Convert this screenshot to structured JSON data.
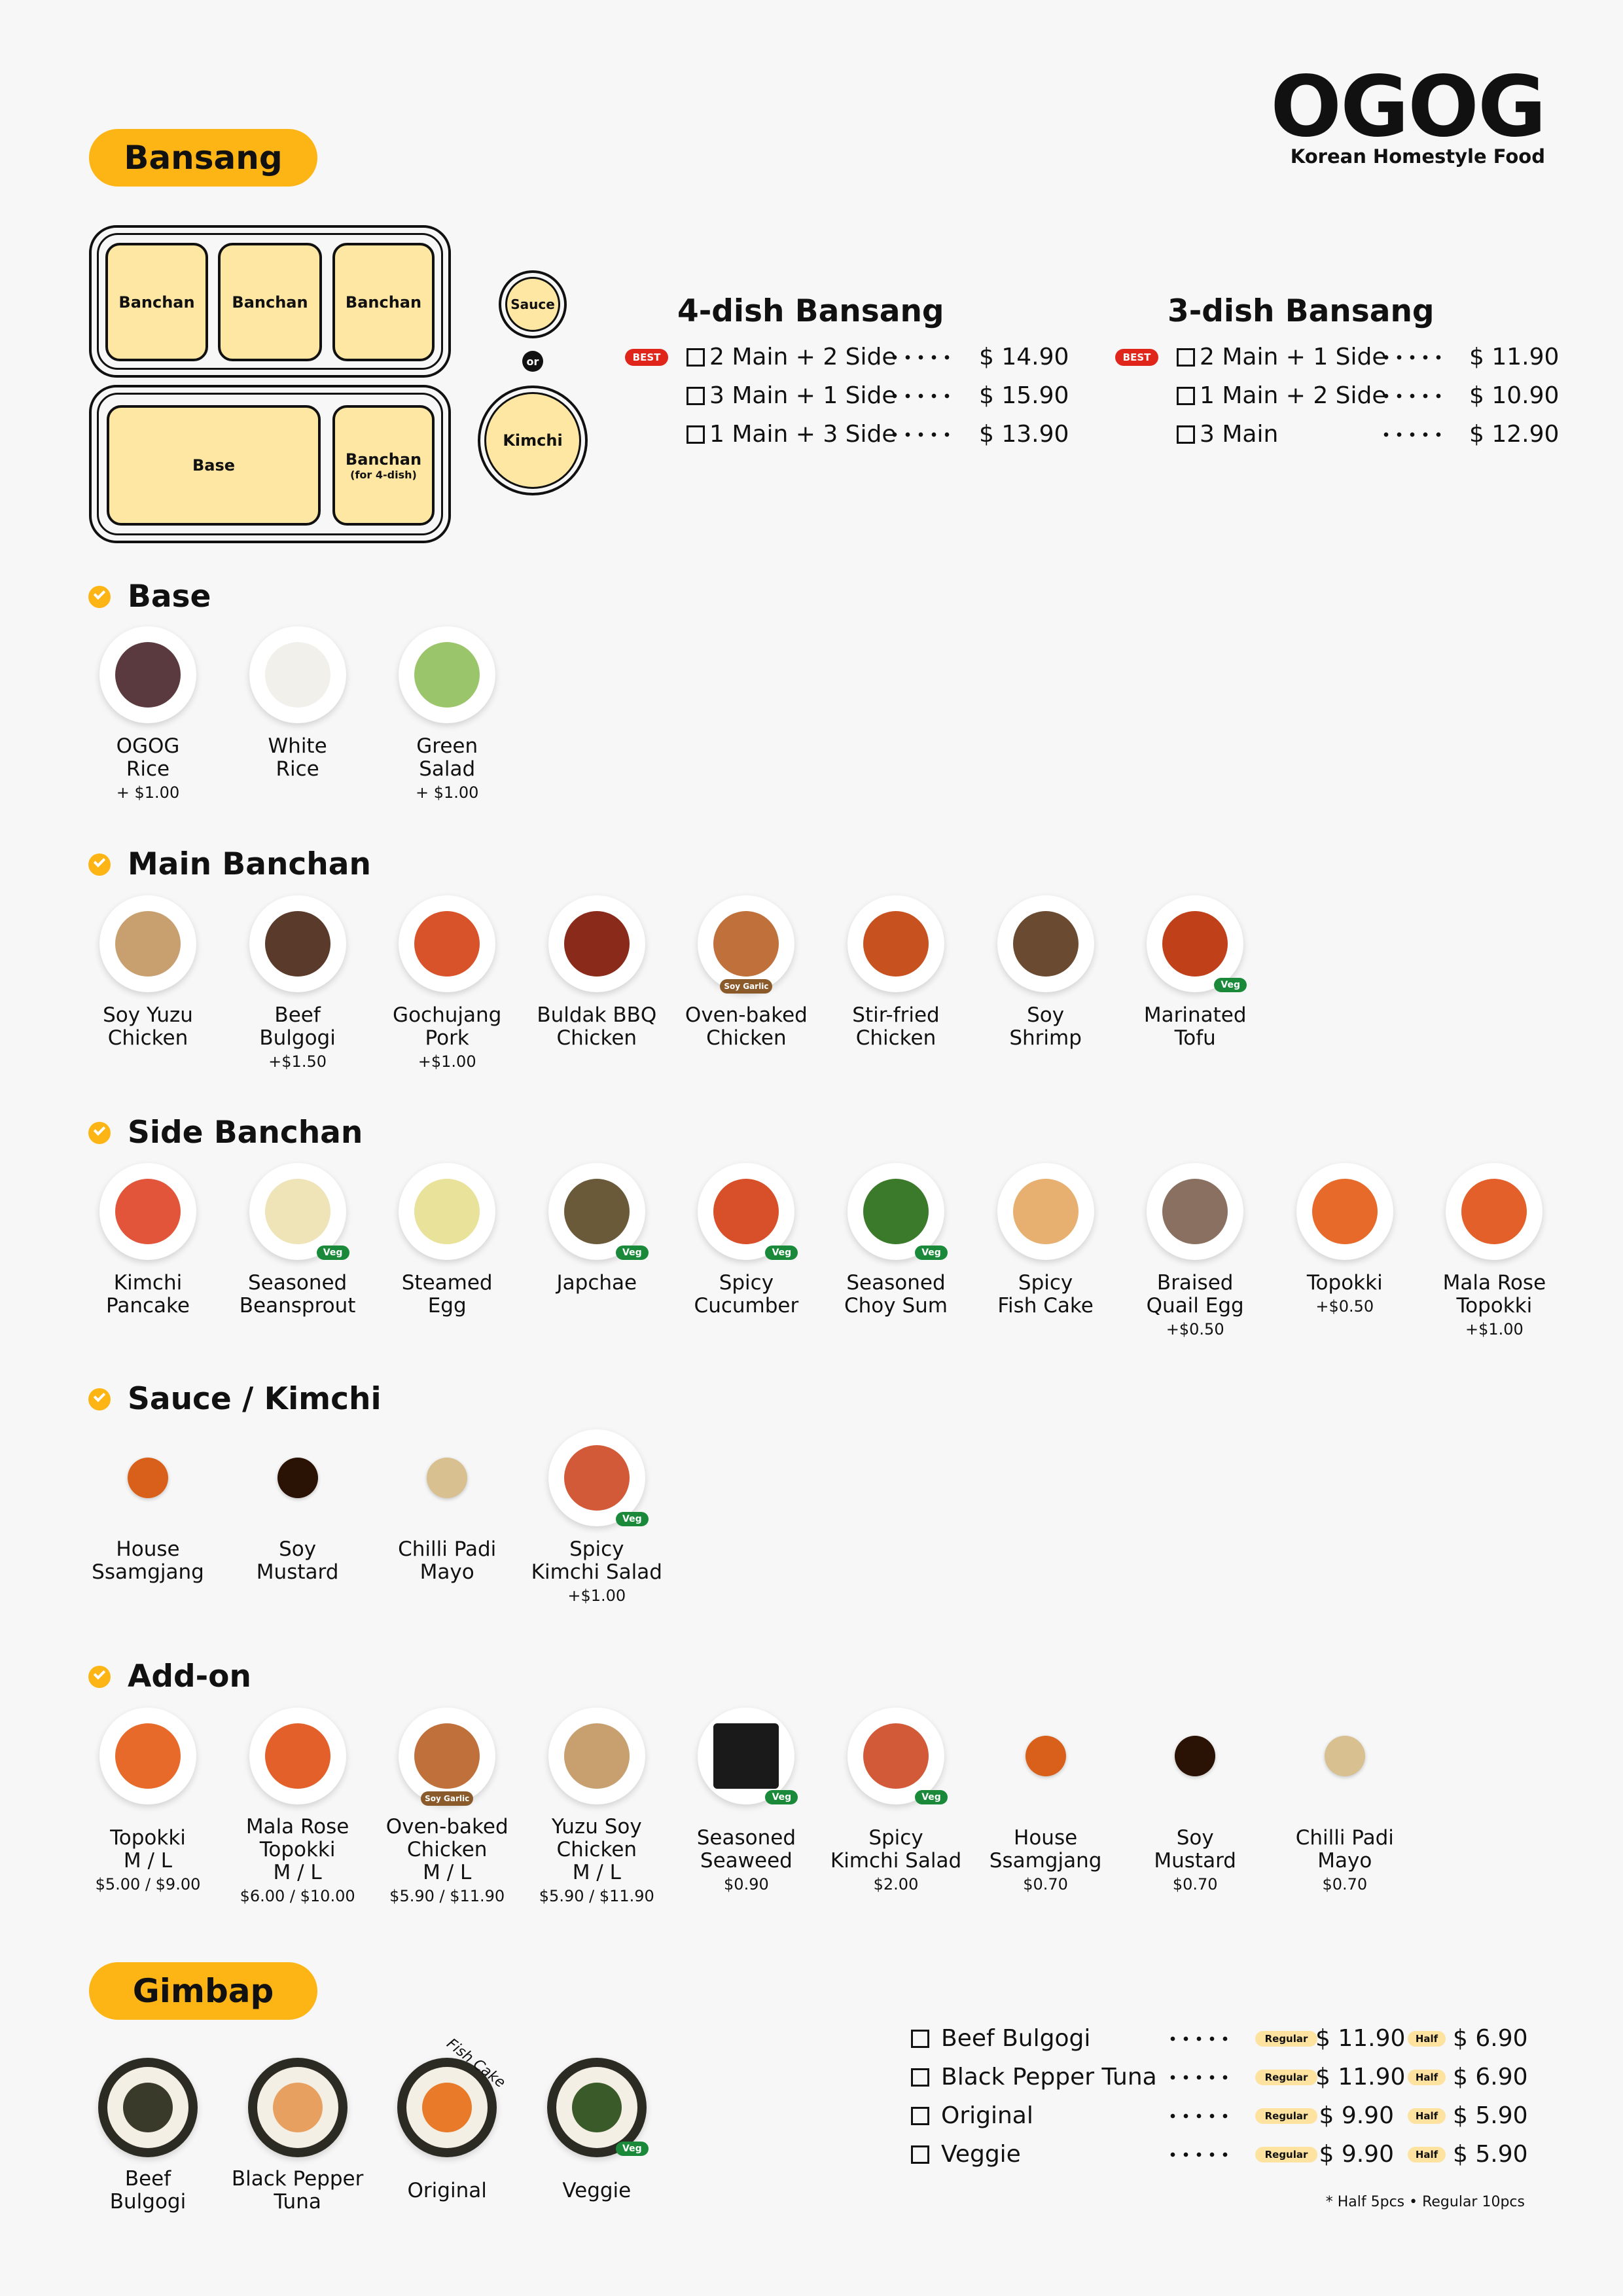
{
  "brand": {
    "name": "OGOG",
    "tagline": "Korean Homestyle Food"
  },
  "bansang": {
    "title": "Bansang",
    "diagram": {
      "slots": [
        "Banchan",
        "Banchan",
        "Banchan",
        "Base",
        "Banchan"
      ],
      "slot_note": "(for 4-dish)",
      "sauce": "Sauce",
      "or": "or",
      "kimchi": "Kimchi"
    },
    "sets": [
      {
        "title": "4-dish Bansang",
        "options": [
          {
            "badge": "BEST",
            "label": "2 Main + 2 Side",
            "price": "$ 14.90"
          },
          {
            "label": "3 Main + 1 Side",
            "price": "$ 15.90"
          },
          {
            "label": "1 Main + 3 Side",
            "price": "$ 13.90"
          }
        ]
      },
      {
        "title": "3-dish Bansang",
        "options": [
          {
            "badge": "BEST",
            "label": "2 Main + 1 Side",
            "price": "$ 11.90"
          },
          {
            "label": "1 Main + 2 Side",
            "price": "$ 10.90"
          },
          {
            "label": "3 Main",
            "price": "$ 12.90"
          }
        ]
      }
    ]
  },
  "sections": [
    {
      "title": "Base",
      "items": [
        {
          "lines": [
            "OGOG",
            "Rice"
          ],
          "note": "+ $1.00"
        },
        {
          "lines": [
            "White",
            "Rice"
          ]
        },
        {
          "lines": [
            "Green",
            "Salad"
          ],
          "note": "+ $1.00"
        }
      ]
    },
    {
      "title": "Main Banchan",
      "items": [
        {
          "lines": [
            "Soy Yuzu",
            "Chicken"
          ]
        },
        {
          "lines": [
            "Beef",
            "Bulgogi"
          ],
          "note": "+$1.50"
        },
        {
          "lines": [
            "Gochujang",
            "Pork"
          ],
          "note": "+$1.00"
        },
        {
          "lines": [
            "Buldak BBQ",
            "Chicken"
          ]
        },
        {
          "lines": [
            "Oven-baked",
            "Chicken"
          ],
          "tag": "Soy Garlic"
        },
        {
          "lines": [
            "Stir-fried",
            "Chicken"
          ]
        },
        {
          "lines": [
            "Soy",
            "Shrimp"
          ]
        },
        {
          "lines": [
            "Marinated",
            "Tofu"
          ],
          "tag": "Veg"
        }
      ]
    },
    {
      "title": "Side Banchan",
      "items": [
        {
          "lines": [
            "Kimchi",
            "Pancake"
          ]
        },
        {
          "lines": [
            "Seasoned",
            "Beansprout"
          ],
          "tag": "Veg"
        },
        {
          "lines": [
            "Steamed",
            "Egg"
          ]
        },
        {
          "lines": [
            "Japchae"
          ],
          "tag": "Veg"
        },
        {
          "lines": [
            "Spicy",
            "Cucumber"
          ],
          "tag": "Veg"
        },
        {
          "lines": [
            "Seasoned",
            "Choy Sum"
          ],
          "tag": "Veg"
        },
        {
          "lines": [
            "Spicy",
            "Fish Cake"
          ]
        },
        {
          "lines": [
            "Braised",
            "Quail Egg"
          ],
          "note": "+$0.50"
        },
        {
          "lines": [
            "Topokki"
          ],
          "note": "+$0.50"
        },
        {
          "lines": [
            "Mala Rose",
            "Topokki"
          ],
          "note": "+$1.00"
        }
      ]
    },
    {
      "title": "Sauce / Kimchi",
      "items": [
        {
          "lines": [
            "House",
            "Ssamgjang"
          ]
        },
        {
          "lines": [
            "Soy",
            "Mustard"
          ]
        },
        {
          "lines": [
            "Chilli Padi",
            "Mayo"
          ]
        },
        {
          "lines": [
            "Spicy",
            "Kimchi Salad"
          ],
          "note": "+$1.00",
          "tag": "Veg"
        }
      ]
    },
    {
      "title": "Add-on",
      "items": [
        {
          "lines": [
            "Topokki",
            "M / L"
          ],
          "note": "$5.00 / $9.00"
        },
        {
          "lines": [
            "Mala Rose",
            "Topokki",
            "M / L"
          ],
          "note": "$6.00 / $10.00"
        },
        {
          "lines": [
            "Oven-baked",
            "Chicken",
            "M / L"
          ],
          "note": "$5.90 / $11.90",
          "tag": "Soy Garlic"
        },
        {
          "lines": [
            "Yuzu Soy",
            "Chicken",
            "M / L"
          ],
          "note": "$5.90 / $11.90"
        },
        {
          "lines": [
            "Seasoned",
            "Seaweed"
          ],
          "note": "$0.90",
          "tag": "Veg"
        },
        {
          "lines": [
            "Spicy",
            "Kimchi Salad"
          ],
          "note": "$2.00",
          "tag": "Veg"
        },
        {
          "lines": [
            "House",
            "Ssamgjang"
          ],
          "note": "$0.70"
        },
        {
          "lines": [
            "Soy",
            "Mustard"
          ],
          "note": "$0.70"
        },
        {
          "lines": [
            "Chilli Padi",
            "Mayo"
          ],
          "note": "$0.70"
        }
      ]
    }
  ],
  "gimbap": {
    "title": "Gimbap",
    "items": [
      {
        "lines": [
          "Beef",
          "Bulgogi"
        ]
      },
      {
        "lines": [
          "Black Pepper",
          "Tuna"
        ]
      },
      {
        "lines": [
          "Original"
        ],
        "annotation": "Fish Cake"
      },
      {
        "lines": [
          "Veggie"
        ],
        "tag": "Veg"
      }
    ],
    "prices": [
      {
        "name": "Beef Bulgogi",
        "regular": {
          "label": "Regular",
          "price": "$ 11.90"
        },
        "half": {
          "label": "Half",
          "price": "$ 6.90"
        }
      },
      {
        "name": "Black Pepper Tuna",
        "regular": {
          "label": "Regular",
          "price": "$ 11.90"
        },
        "half": {
          "label": "Half",
          "price": "$ 6.90"
        }
      },
      {
        "name": "Original",
        "regular": {
          "label": "Regular",
          "price": "$ 9.90"
        },
        "half": {
          "label": "Half",
          "price": "$ 5.90"
        }
      },
      {
        "name": "Veggie",
        "regular": {
          "label": "Regular",
          "price": "$ 9.90"
        },
        "half": {
          "label": "Half",
          "price": "$ 5.90"
        }
      }
    ],
    "footnote": "* Half 5pcs • Regular 10pcs"
  }
}
